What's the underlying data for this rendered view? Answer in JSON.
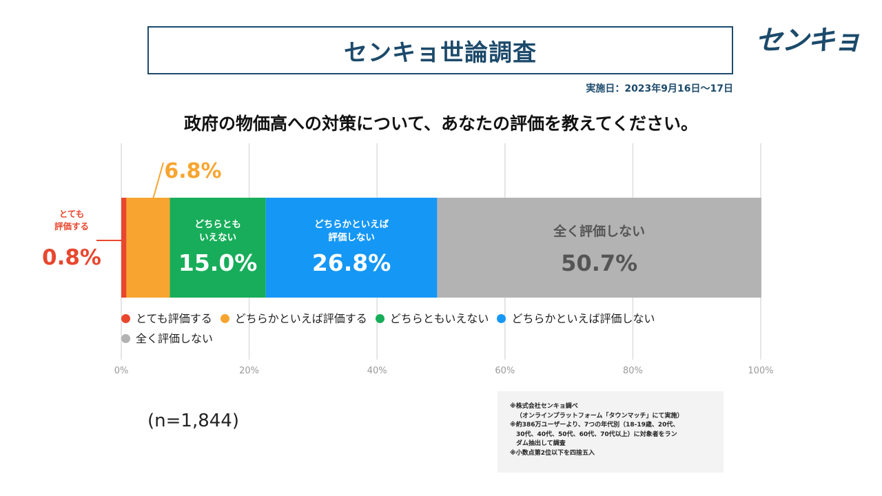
{
  "header": {
    "title": "センキョ世論調査",
    "logo_text": "センキョ",
    "survey_date": "実施日：2023年9月16日～17日"
  },
  "question": "政府の物価高への対策について、あなたの評価を教えてください。",
  "chart_data": {
    "type": "bar",
    "orientation": "horizontal-stacked",
    "xlim": [
      0,
      100
    ],
    "x_ticks": [
      "0%",
      "20%",
      "40%",
      "60%",
      "80%",
      "100%"
    ],
    "grid": true,
    "legend_placement": "bottom-left",
    "series": [
      {
        "name": "とても評価する",
        "value": 0.8,
        "label": "0.8%",
        "color": "#e8472e",
        "inner_label": ""
      },
      {
        "name": "どちらかといえば評価する",
        "value": 6.8,
        "label": "6.8%",
        "color": "#f7a530",
        "inner_label": ""
      },
      {
        "name": "どちらともいえない",
        "value": 15.0,
        "label": "15.0%",
        "color": "#18ad5a",
        "inner_label": "どちらとも\nいえない"
      },
      {
        "name": "どちらかといえば評価しない",
        "value": 26.8,
        "label": "26.8%",
        "color": "#1597f5",
        "inner_label": "どちらかといえば\n評価しない"
      },
      {
        "name": "全く評価しない",
        "value": 50.7,
        "label": "50.7%",
        "color": "#b3b3b3",
        "inner_label": "全く評価しない"
      }
    ],
    "callout_small": "とても\n評価する"
  },
  "sample_size": "(n=1,844)",
  "notes": [
    "※株式会社センキョ調べ",
    "（オンラインプラットフォーム「タウンマッチ」にて実施）",
    "※約386万ユーザーより、7つの年代別（18-19歳、20代、",
    "30代、40代、50代、60代、70代以上）に対象者をラン",
    "ダム抽出して調査",
    "※小数点第2位以下を四捨五入"
  ],
  "colors": {
    "brand": "#1c4a6b",
    "grid": "#dddddd",
    "tick_text": "#999999"
  }
}
